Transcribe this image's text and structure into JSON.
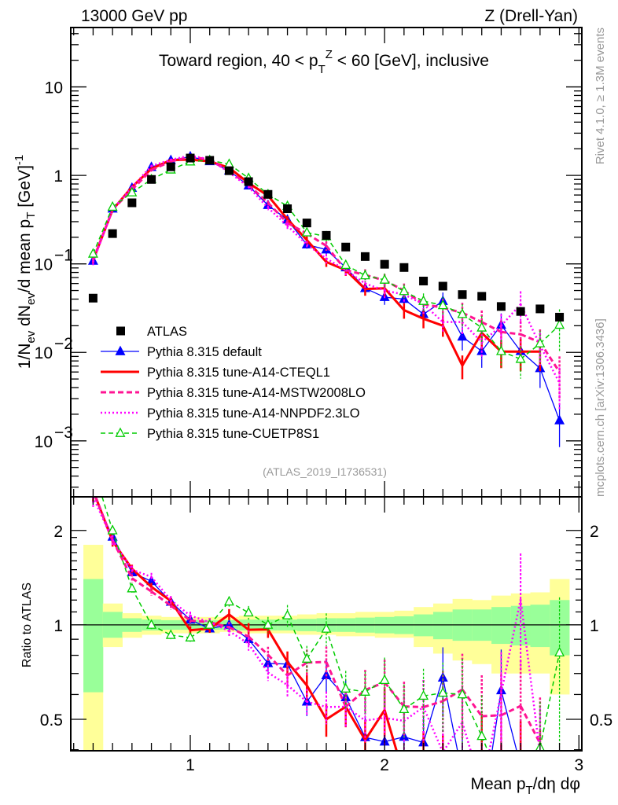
{
  "header": {
    "left": "13000 GeV pp",
    "right": "Z (Drell-Yan)",
    "title_pre": "Toward region, 40 < p",
    "title_sub": "T",
    "title_sup": "Z",
    "title_post": " < 60 [GeV], inclusive"
  },
  "side": {
    "rivet": "Rivet 4.1.0, ≥ 1.3M events",
    "mcplots": "mcplots.cern.ch [arXiv:1306.3436]"
  },
  "analysis_tag": "(ATLAS_2019_I1736531)",
  "chart_data": {
    "type": "line",
    "title": "Toward region, 40 < pT^Z < 60 [GeV], inclusive",
    "xlabel": {
      "pre": "Mean p",
      "sub": "T",
      "post": "/dη dφ"
    },
    "ylabel": {
      "a": "1/N",
      "a_sub": "ev",
      "b": " dN",
      "b_sub": "ev",
      "c": "/d mean p",
      "c_sub": "T",
      "d": " [GeV]",
      "d_sup": "-1"
    },
    "ratio_ylabel": "Ratio to ATLAS",
    "xlim": [
      0.385,
      3.015
    ],
    "ylim": [
      0.000233,
      46.9
    ],
    "yscale": "log",
    "ratio_ylim": [
      0.397,
      2.56
    ],
    "ratio_yscale": "log",
    "x_tick_labels": [
      {
        "v": 1,
        "t": "1"
      },
      {
        "v": 2,
        "t": "2"
      },
      {
        "v": 3,
        "t": "3"
      }
    ],
    "y_tick_labels": [
      {
        "v": 10,
        "t": "10"
      },
      {
        "v": 1,
        "t": "1"
      },
      {
        "v": 0.1,
        "base": "10",
        "exp": "−1"
      },
      {
        "v": 0.01,
        "base": "10",
        "exp": "−2"
      },
      {
        "v": 0.001,
        "base": "10",
        "exp": "−3"
      }
    ],
    "ratio_tick_labels": [
      {
        "v": 2,
        "t": "2"
      },
      {
        "v": 1,
        "t": "1"
      },
      {
        "v": 0.5,
        "t": "0.5"
      }
    ],
    "legend_position": "lower-left",
    "x": [
      0.5,
      0.6,
      0.7,
      0.8,
      0.9,
      1.0,
      1.1,
      1.2,
      1.3,
      1.4,
      1.5,
      1.6,
      1.7,
      1.8,
      1.9,
      2.0,
      2.1,
      2.2,
      2.3,
      2.4,
      2.5,
      2.6,
      2.7,
      2.8,
      2.9
    ],
    "data": {
      "name": "ATLAS",
      "color": "#000000",
      "values": [
        0.041,
        0.22,
        0.49,
        0.9,
        1.25,
        1.57,
        1.48,
        1.13,
        0.85,
        0.61,
        0.42,
        0.29,
        0.21,
        0.155,
        0.121,
        0.099,
        0.091,
        0.064,
        0.056,
        0.045,
        0.043,
        0.033,
        0.029,
        0.031,
        0.025
      ],
      "band_outer_up": [
        1.8,
        1.17,
        1.09,
        1.07,
        1.06,
        1.06,
        1.06,
        1.06,
        1.07,
        1.07,
        1.07,
        1.08,
        1.09,
        1.09,
        1.1,
        1.1,
        1.11,
        1.14,
        1.17,
        1.21,
        1.2,
        1.24,
        1.26,
        1.27,
        1.4
      ],
      "band_outer_down": [
        0.35,
        0.85,
        0.91,
        0.93,
        0.94,
        0.94,
        0.94,
        0.95,
        0.94,
        0.94,
        0.94,
        0.93,
        0.93,
        0.92,
        0.92,
        0.91,
        0.91,
        0.85,
        0.81,
        0.77,
        0.75,
        0.7,
        0.7,
        0.7,
        0.6
      ],
      "band_inner_up": [
        1.4,
        1.1,
        1.05,
        1.04,
        1.035,
        1.035,
        1.035,
        1.035,
        1.04,
        1.04,
        1.04,
        1.045,
        1.05,
        1.05,
        1.055,
        1.06,
        1.065,
        1.08,
        1.1,
        1.12,
        1.12,
        1.14,
        1.15,
        1.16,
        1.2
      ],
      "band_inner_down": [
        0.61,
        0.91,
        0.95,
        0.96,
        0.965,
        0.965,
        0.965,
        0.965,
        0.96,
        0.96,
        0.96,
        0.955,
        0.95,
        0.95,
        0.945,
        0.94,
        0.935,
        0.92,
        0.9,
        0.89,
        0.89,
        0.87,
        0.86,
        0.85,
        0.8
      ],
      "band_inner_color": "#99ff99",
      "band_outer_color": "#ffff99"
    },
    "mc_rel_err": [
      0.08,
      0.04,
      0.03,
      0.03,
      0.03,
      0.03,
      0.03,
      0.04,
      0.05,
      0.06,
      0.08,
      0.1,
      0.12,
      0.14,
      0.16,
      0.18,
      0.2,
      0.22,
      0.25,
      0.3,
      0.35,
      0.35,
      0.4,
      0.4,
      0.5
    ],
    "series": [
      {
        "name": "Pythia 8.315 default",
        "color": "#0000ff",
        "style": "solid",
        "marker": "filled-triangle",
        "values": [
          0.108,
          0.42,
          0.72,
          1.24,
          1.48,
          1.63,
          1.44,
          1.13,
          0.765,
          0.46,
          0.315,
          0.165,
          0.145,
          0.091,
          0.053,
          0.042,
          0.04,
          0.027,
          0.038,
          0.015,
          0.0103,
          0.0204,
          0.0103,
          0.0066,
          0.0017
        ]
      },
      {
        "name": "Pythia 8.315 tune-A14-CTEQL1",
        "color": "#ff0000",
        "style": "solid-thick",
        "marker": "none",
        "values": [
          0.11,
          0.407,
          0.74,
          1.19,
          1.49,
          1.51,
          1.44,
          1.22,
          0.82,
          0.59,
          0.32,
          0.186,
          0.105,
          0.085,
          0.052,
          0.053,
          0.03,
          0.024,
          0.02,
          0.0071,
          0.0166,
          0.0102,
          0.0102,
          0.0102,
          null
        ]
      },
      {
        "name": "Pythia 8.315 tune-A14-MSTW2008LO",
        "color": "#ff1493",
        "style": "dashed",
        "marker": "none",
        "values": [
          0.11,
          0.41,
          0.69,
          1.15,
          1.44,
          1.62,
          1.51,
          1.11,
          0.78,
          0.49,
          0.29,
          0.22,
          0.16,
          0.085,
          0.075,
          0.065,
          0.05,
          0.035,
          0.032,
          0.028,
          0.022,
          0.017,
          0.016,
          0.013,
          0.006
        ]
      },
      {
        "name": "Pythia 8.315 tune-A14-NNPDF2.3LO",
        "color": "#ff00ff",
        "style": "dotted",
        "marker": "none",
        "values": [
          0.105,
          0.41,
          0.735,
          1.28,
          1.5,
          1.68,
          1.51,
          1.08,
          0.74,
          0.43,
          0.27,
          0.165,
          0.115,
          0.085,
          0.06,
          0.05,
          0.045,
          0.035,
          0.022,
          0.022,
          0.013,
          0.02,
          0.035,
          0.012,
          0.0045
        ]
      },
      {
        "name": "Pythia 8.315 tune-CUETP8S1",
        "color": "#00cc00",
        "style": "dashed-thin",
        "marker": "open-triangle",
        "values": [
          0.13,
          0.44,
          0.64,
          0.9,
          1.16,
          1.43,
          1.48,
          1.34,
          0.93,
          0.61,
          0.45,
          0.226,
          0.204,
          0.097,
          0.074,
          0.066,
          0.049,
          0.038,
          0.034,
          0.027,
          0.019,
          0.0103,
          0.0084,
          0.0126,
          0.0204
        ]
      }
    ]
  }
}
